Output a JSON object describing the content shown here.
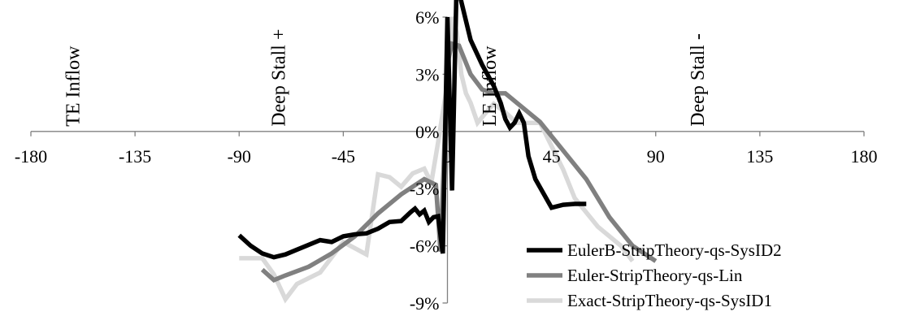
{
  "chart_data": {
    "type": "line",
    "title": "",
    "xlabel": "",
    "ylabel": "",
    "xlim": [
      -180,
      180
    ],
    "ylim": [
      -0.09,
      0.06
    ],
    "x_ticks": [
      {
        "value": -180,
        "label": "-180"
      },
      {
        "value": -135,
        "label": "-135"
      },
      {
        "value": -90,
        "label": "-90"
      },
      {
        "value": -45,
        "label": "-45"
      },
      {
        "value": 0,
        "label": "0"
      },
      {
        "value": 45,
        "label": "45"
      },
      {
        "value": 90,
        "label": "90"
      },
      {
        "value": 135,
        "label": "135"
      },
      {
        "value": 180,
        "label": "180"
      }
    ],
    "y_ticks": [
      {
        "value": 0.06,
        "label": "6%"
      },
      {
        "value": 0.03,
        "label": "3%"
      },
      {
        "value": 0.0,
        "label": "0%"
      },
      {
        "value": -0.03,
        "label": "-3%"
      },
      {
        "value": -0.06,
        "label": "-6%"
      },
      {
        "value": -0.09,
        "label": "-9%"
      }
    ],
    "annotations": [
      {
        "text": "TE Inflow",
        "x": -162
      },
      {
        "text": "Deep Stall +",
        "x": -73
      },
      {
        "text": "LE Inflow",
        "x": 18
      },
      {
        "text": "Deep Stall -",
        "x": 108
      }
    ],
    "legend_position": "bottom-right",
    "series": [
      {
        "name": "EulerB-StripTheory-qs-SysID2",
        "color": "#000000",
        "points": [
          [
            -90,
            -0.0545
          ],
          [
            -85,
            -0.06
          ],
          [
            -80,
            -0.064
          ],
          [
            -75,
            -0.066
          ],
          [
            -70,
            -0.0645
          ],
          [
            -65,
            -0.062
          ],
          [
            -60,
            -0.0595
          ],
          [
            -55,
            -0.057
          ],
          [
            -50,
            -0.058
          ],
          [
            -45,
            -0.055
          ],
          [
            -40,
            -0.054
          ],
          [
            -35,
            -0.0535
          ],
          [
            -30,
            -0.051
          ],
          [
            -25,
            -0.0475
          ],
          [
            -20,
            -0.047
          ],
          [
            -16,
            -0.0425
          ],
          [
            -14,
            -0.0405
          ],
          [
            -12,
            -0.0435
          ],
          [
            -10,
            -0.0415
          ],
          [
            -8,
            -0.0475
          ],
          [
            -6,
            -0.045
          ],
          [
            -4,
            -0.0445
          ],
          [
            -2,
            -0.064
          ],
          [
            0,
            0.06
          ],
          [
            2,
            -0.031
          ],
          [
            4,
            0.08
          ],
          [
            6,
            0.068
          ],
          [
            10,
            0.048
          ],
          [
            15,
            0.035
          ],
          [
            20,
            0.024
          ],
          [
            23,
            0.015
          ],
          [
            25,
            0.0065
          ],
          [
            27,
            0.002
          ],
          [
            29,
            0.0045
          ],
          [
            31,
            0.0095
          ],
          [
            33,
            0.0045
          ],
          [
            35,
            -0.013
          ],
          [
            38,
            -0.025
          ],
          [
            45,
            -0.04
          ],
          [
            50,
            -0.0385
          ],
          [
            55,
            -0.038
          ],
          [
            60,
            -0.038
          ]
        ]
      },
      {
        "name": "Euler-StripTheory-qs-Lin",
        "color": "#808080",
        "points": [
          [
            -80,
            -0.0725
          ],
          [
            -75,
            -0.078
          ],
          [
            -70,
            -0.0755
          ],
          [
            -60,
            -0.071
          ],
          [
            -50,
            -0.064
          ],
          [
            -40,
            -0.055
          ],
          [
            -30,
            -0.043
          ],
          [
            -20,
            -0.033
          ],
          [
            -10,
            -0.025
          ],
          [
            -5,
            -0.028
          ],
          [
            -3,
            -0.063
          ],
          [
            0,
            0.036
          ],
          [
            2,
            0.046
          ],
          [
            5,
            0.045
          ],
          [
            10,
            0.03
          ],
          [
            15,
            0.022
          ],
          [
            20,
            0.02
          ],
          [
            25,
            0.02
          ],
          [
            30,
            0.015
          ],
          [
            40,
            0.005
          ],
          [
            50,
            -0.01
          ],
          [
            60,
            -0.025
          ],
          [
            70,
            -0.045
          ],
          [
            80,
            -0.06
          ],
          [
            90,
            -0.068
          ]
        ]
      },
      {
        "name": "Exact-StripTheory-qs-SysID1",
        "color": "#d9d9d9",
        "points": [
          [
            -90,
            -0.0665
          ],
          [
            -80,
            -0.0665
          ],
          [
            -75,
            -0.075
          ],
          [
            -70,
            -0.088
          ],
          [
            -65,
            -0.08
          ],
          [
            -55,
            -0.074
          ],
          [
            -45,
            -0.058
          ],
          [
            -35,
            -0.0645
          ],
          [
            -30,
            -0.0225
          ],
          [
            -25,
            -0.024
          ],
          [
            -20,
            -0.029
          ],
          [
            -15,
            -0.022
          ],
          [
            -10,
            -0.0195
          ],
          [
            -7,
            -0.027
          ],
          [
            -4,
            -0.0055
          ],
          [
            -2,
            0.01
          ],
          [
            0,
            0.025
          ],
          [
            2,
            0.06
          ],
          [
            4,
            0.052
          ],
          [
            6,
            0.03
          ],
          [
            8,
            0.02
          ],
          [
            10,
            0.015
          ],
          [
            13,
            0.0045
          ],
          [
            16,
            0.009
          ],
          [
            20,
            0.0145
          ],
          [
            25,
            0.01
          ],
          [
            30,
            0.0045
          ],
          [
            40,
            0.0045
          ],
          [
            50,
            -0.02
          ],
          [
            55,
            -0.035
          ],
          [
            65,
            -0.05
          ],
          [
            75,
            -0.06
          ],
          [
            80,
            -0.068
          ]
        ]
      }
    ]
  }
}
